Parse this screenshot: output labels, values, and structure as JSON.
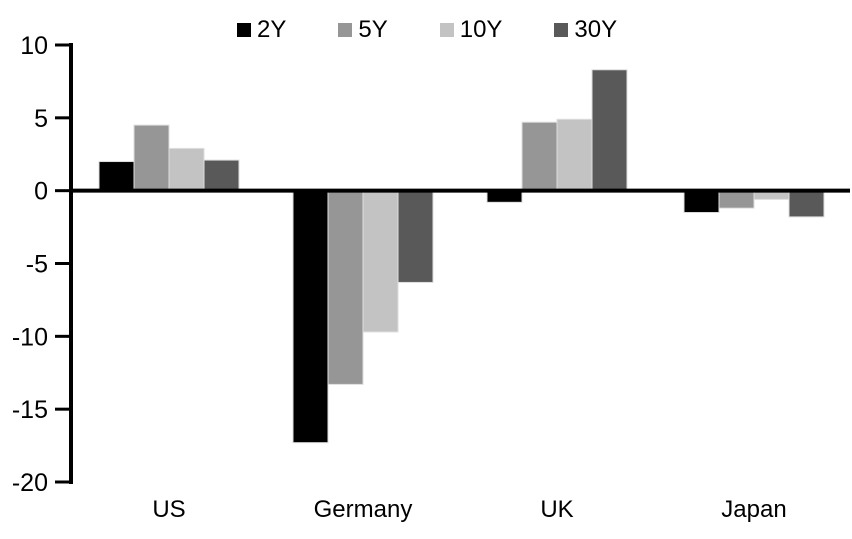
{
  "chart_data": {
    "type": "bar",
    "categories": [
      "US",
      "Germany",
      "UK",
      "Japan"
    ],
    "series": [
      {
        "name": "2Y",
        "color": "#000000",
        "values": [
          2.0,
          -17.3,
          -0.8,
          -1.5
        ]
      },
      {
        "name": "5Y",
        "color": "#969696",
        "values": [
          4.5,
          -13.3,
          4.7,
          -1.2
        ]
      },
      {
        "name": "10Y",
        "color": "#c3c3c3",
        "values": [
          2.9,
          -9.7,
          4.9,
          -0.6
        ]
      },
      {
        "name": "30Y",
        "color": "#595959",
        "values": [
          2.1,
          -6.3,
          8.3,
          -1.8
        ]
      }
    ],
    "title": "",
    "xlabel": "",
    "ylabel": "",
    "ylim": [
      -20,
      10
    ],
    "yticks": [
      10,
      5,
      0,
      -5,
      -10,
      -15,
      -20
    ],
    "legend_position": "top",
    "grid": false,
    "axis_color": "#000000",
    "background_color": "#ffffff"
  }
}
